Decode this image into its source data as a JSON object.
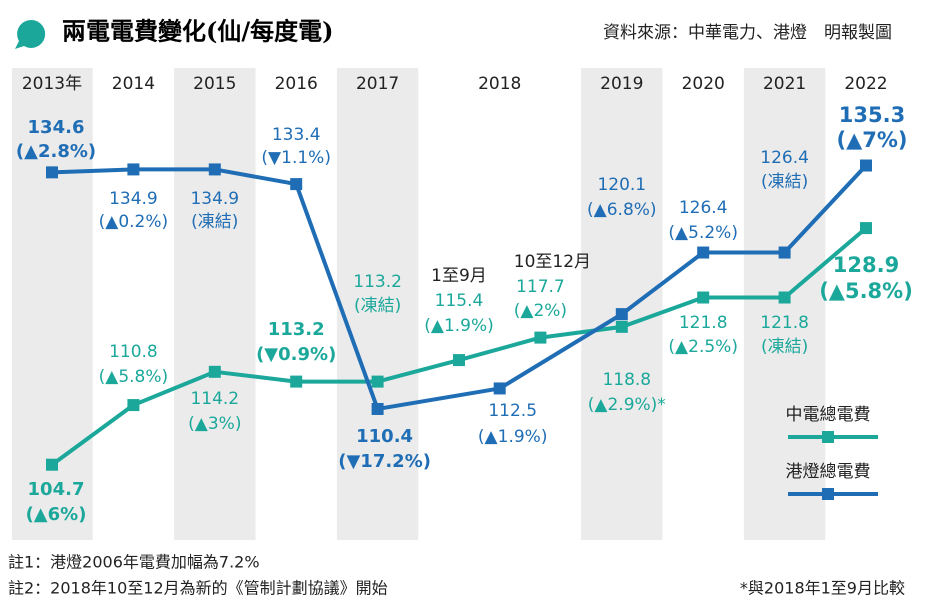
{
  "chart_data": {
    "type": "line",
    "title": "兩電電費變化(仙/每度電)",
    "source": "資料來源：中華電力、港燈　明報製圖",
    "categories": [
      "2013年",
      "2014",
      "2015",
      "2016",
      "2017",
      "2018",
      null,
      "2019",
      "2020",
      "2021",
      "2022"
    ],
    "subcategories": [
      null,
      null,
      null,
      null,
      null,
      "1至9月",
      "10至12月",
      null,
      null,
      null,
      null
    ],
    "ylim": [
      97,
      142
    ],
    "series": [
      {
        "name": "中電總電費",
        "color": "#1ba89b",
        "x": [
          0,
          1,
          2,
          3,
          4,
          5,
          6,
          7,
          8,
          9,
          10
        ],
        "values": [
          104.7,
          110.8,
          114.2,
          113.2,
          113.2,
          115.4,
          117.7,
          118.8,
          121.8,
          121.8,
          128.9
        ],
        "changes": [
          "(▲6%)",
          "(▲5.8%)",
          "(▲3%)",
          "(▼0.9%)",
          "(凍結)",
          "(▲1.9%)",
          "(▲2%)",
          "(▲2.9%)*",
          "(▲2.5%)",
          "(凍結)",
          "(▲5.8%)"
        ],
        "bold": [
          true,
          false,
          false,
          true,
          false,
          false,
          false,
          false,
          false,
          false,
          true
        ]
      },
      {
        "name": "港燈總電費",
        "color": "#1f6db5",
        "x": [
          0,
          1,
          2,
          3,
          4,
          5.5,
          7,
          8,
          9,
          10
        ],
        "values": [
          134.6,
          134.9,
          134.9,
          133.4,
          110.4,
          112.5,
          120.1,
          126.4,
          126.4,
          135.3
        ],
        "changes": [
          "(▲2.8%)",
          "(▲0.2%)",
          "(凍結)",
          "(▼1.1%)",
          "(▼17.2%)",
          "(▲1.9%)",
          "(▲6.8%)",
          "(▲5.2%)",
          "(凍結)",
          "(▲7%)"
        ],
        "bold": [
          true,
          false,
          false,
          false,
          true,
          false,
          false,
          false,
          false,
          true
        ]
      }
    ],
    "notes": [
      "註1：港燈2006年電費加幅為7.2%",
      "註2：2018年10至12月為新的《管制計劃協議》開始"
    ],
    "footnote": "*與2018年1至9月比較"
  }
}
